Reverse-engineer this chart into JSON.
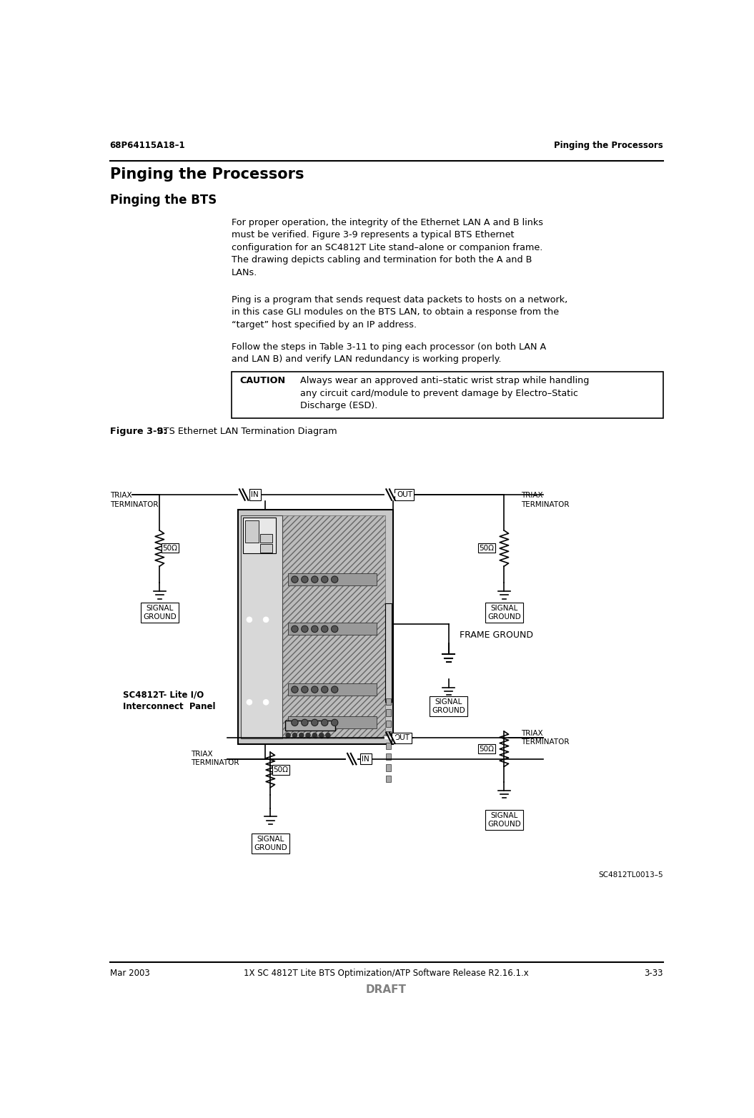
{
  "header_left": "68P64115A18–1",
  "header_right": "Pinging the Processors",
  "footer_left": "Mar 2003",
  "footer_center": "1X SC 4812T Lite BTS Optimization/ATP Software Release R2.16.1.x",
  "footer_right": "3-33",
  "footer_draft": "DRAFT",
  "title1": "Pinging the Processors",
  "title2": "Pinging the BTS",
  "para1": "For proper operation, the integrity of the Ethernet LAN A and B links\nmust be verified. Figure 3-9 represents a typical BTS Ethernet\nconfiguration for an SC4812T Lite stand–alone or companion frame.\nThe drawing depicts cabling and termination for both the A and B\nLANs.",
  "para2": "Ping is a program that sends request data packets to hosts on a network,\nin this case GLI modules on the BTS LAN, to obtain a response from the\n“target” host specified by an IP address.",
  "para3": "Follow the steps in Table 3-11 to ping each processor (on both LAN A\nand LAN B) and verify LAN redundancy is working properly.",
  "caution_label": "CAUTION",
  "caution_text": "Always wear an approved anti–static wrist strap while handling\nany circuit card/module to prevent damage by Electro–Static\nDischarge (ESD).",
  "figure_caption_bold": "Figure 3-9:",
  "figure_caption_normal": "  BTS Ethernet LAN Termination Diagram",
  "diagram_label_sc": "SC4812T- Lite I/O\nInterconnect  Panel",
  "diagram_label_frame": "FRAME GROUND",
  "diagram_label_sc4812t": "SC4812TL0013–5",
  "label_triax_term": "TRIAX\nTERMINATOR",
  "label_signal_ground": "SIGNAL\nGROUND",
  "label_50ohm": "50Ω",
  "label_in": "IN",
  "label_out": "OUT",
  "bg_color": "#ffffff",
  "text_color": "#000000"
}
